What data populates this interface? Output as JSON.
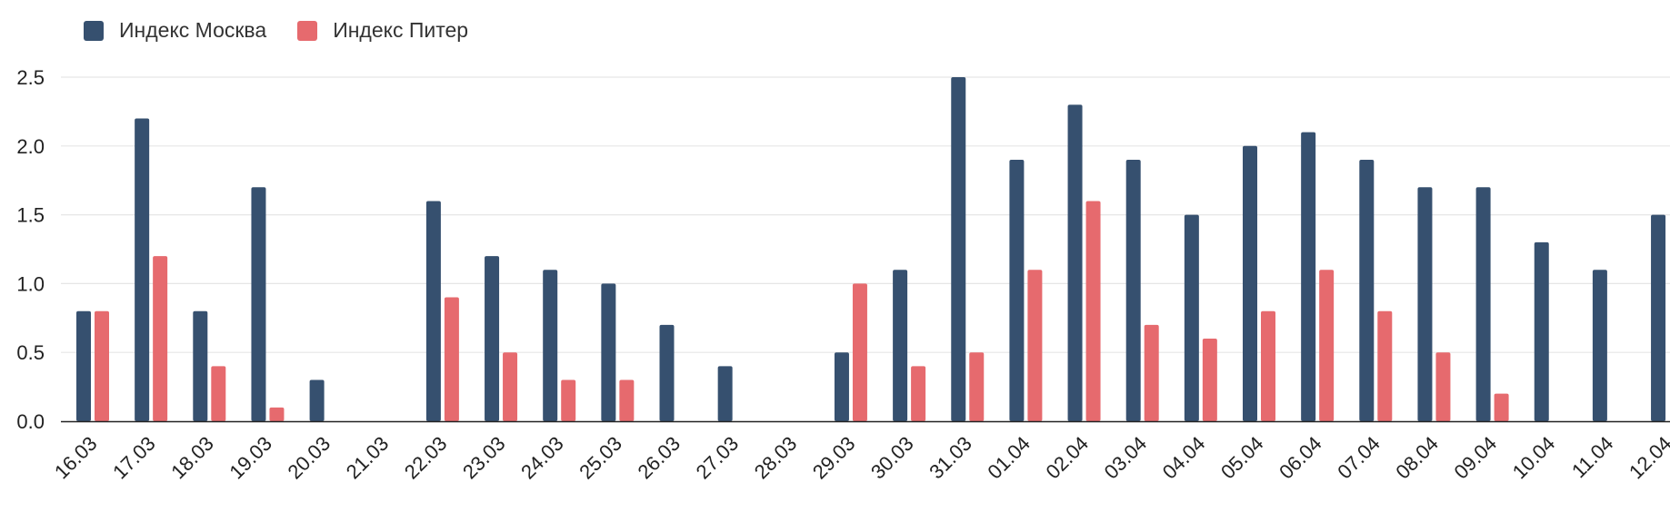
{
  "chart_data": {
    "type": "bar",
    "title": "",
    "xlabel": "",
    "ylabel": "",
    "ylim": [
      0,
      2.5
    ],
    "yticks": [
      "0.0",
      "0.5",
      "1.0",
      "1.5",
      "2.0",
      "2.5"
    ],
    "grid": true,
    "legend_position": "top-left",
    "categories": [
      "16.03",
      "17.03",
      "18.03",
      "19.03",
      "20.03",
      "21.03",
      "22.03",
      "23.03",
      "24.03",
      "25.03",
      "26.03",
      "27.03",
      "28.03",
      "29.03",
      "30.03",
      "31.03",
      "01.04",
      "02.04",
      "03.04",
      "04.04",
      "05.04",
      "06.04",
      "07.04",
      "08.04",
      "09.04",
      "10.04",
      "11.04",
      "12.04"
    ],
    "series": [
      {
        "name": "Индекс Москва",
        "color": "#36506f",
        "values": [
          0.8,
          2.2,
          0.8,
          1.7,
          0.3,
          0,
          1.6,
          1.2,
          1.1,
          1.0,
          0.7,
          0.4,
          0,
          0.5,
          1.1,
          2.5,
          1.9,
          2.3,
          1.9,
          1.5,
          2.0,
          2.1,
          1.9,
          1.7,
          1.7,
          1.3,
          1.1,
          1.5
        ]
      },
      {
        "name": "Индекс Питер",
        "color": "#e66a6e",
        "values": [
          0.8,
          1.2,
          0.4,
          0.1,
          0,
          0,
          0.9,
          0.5,
          0.3,
          0.3,
          0,
          0,
          0,
          1.0,
          0.4,
          0.5,
          1.1,
          1.6,
          0.7,
          0.6,
          0.8,
          1.1,
          0.8,
          0.5,
          0.2,
          0,
          0,
          0
        ]
      }
    ]
  }
}
